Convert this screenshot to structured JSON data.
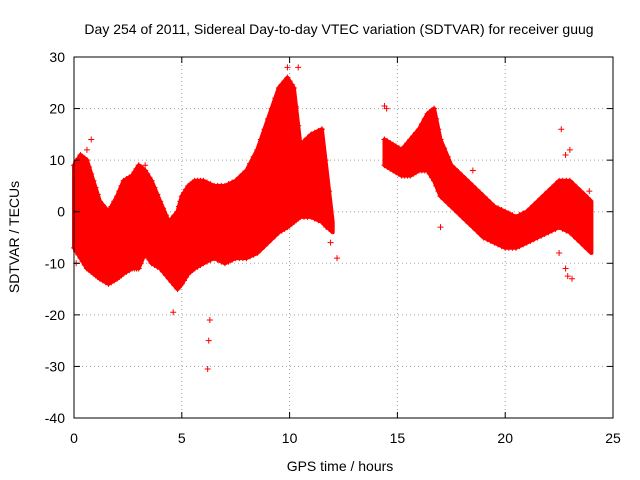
{
  "chart_data": {
    "type": "scatter",
    "title": "Day 254 of 2011, Sidereal Day-to-day VTEC variation (SDTVAR) for receiver guug",
    "xlabel": "GPS time / hours",
    "ylabel": "SDTVAR / TECUs",
    "xlim": [
      0,
      25
    ],
    "ylim": [
      -40,
      30
    ],
    "xticks": [
      0,
      5,
      10,
      15,
      20,
      25
    ],
    "yticks": [
      -40,
      -30,
      -20,
      -10,
      0,
      10,
      20,
      30
    ],
    "grid": true,
    "marker": "+",
    "color": "#ff0000",
    "series": [
      {
        "name": "SDTVAR",
        "band_segments": [
          {
            "x": [
              0,
              0.3,
              0.6,
              0.9,
              1.2,
              1.6,
              2.0,
              2.3,
              2.7,
              3.0,
              3.3,
              3.6,
              4.0,
              4.4,
              4.8,
              5.0,
              5.3,
              5.6,
              6.0,
              6.5,
              7.0,
              7.5,
              8.0,
              8.5,
              9.0,
              9.5,
              9.9,
              10.2,
              10.5,
              11.0,
              11.5,
              12.0
            ],
            "upper": [
              9,
              11,
              10,
              6,
              2,
              0,
              3,
              6,
              7,
              9,
              8,
              6,
              2,
              -2,
              0,
              3,
              5,
              6,
              6,
              5,
              5,
              6,
              8,
              12,
              18,
              24,
              26,
              24,
              13,
              15,
              16,
              -2
            ],
            "lower": [
              -7,
              -9,
              -11,
              -12,
              -13,
              -14,
              -13,
              -12,
              -11,
              -11,
              -8,
              -10,
              -11,
              -13,
              -15,
              -14,
              -12,
              -11,
              -10,
              -9,
              -10,
              -9,
              -9,
              -8,
              -6,
              -4,
              -3,
              -2,
              -1,
              -1,
              -2,
              -4
            ]
          },
          {
            "x": [
              14.4,
              14.8,
              15.2,
              15.6,
              16.0,
              16.4,
              16.7,
              17.0,
              17.5,
              18.0,
              18.5,
              19.0,
              19.5,
              20.0,
              20.5,
              21.0,
              21.5,
              22.0,
              22.5,
              23.0,
              23.5,
              24.0
            ],
            "upper": [
              14,
              13,
              12,
              14,
              16,
              19,
              20,
              14,
              9,
              7,
              5,
              3,
              1,
              0,
              -1,
              0,
              2,
              4,
              6,
              6,
              4,
              2
            ],
            "lower": [
              9,
              8,
              7,
              7,
              8,
              8,
              6,
              3,
              1,
              -1,
              -3,
              -5,
              -6,
              -7,
              -7,
              -6,
              -5,
              -4,
              -3,
              -4,
              -6,
              -8
            ]
          }
        ],
        "outliers": [
          [
            0.6,
            12
          ],
          [
            0.8,
            14
          ],
          [
            0.1,
            -10
          ],
          [
            4.6,
            -19.5
          ],
          [
            6.2,
            -30.5
          ],
          [
            6.25,
            -25
          ],
          [
            6.3,
            -21
          ],
          [
            9.9,
            28
          ],
          [
            10.4,
            28
          ],
          [
            10.9,
            8
          ],
          [
            11.7,
            -3
          ],
          [
            11.9,
            -6
          ],
          [
            12.2,
            -9
          ],
          [
            14.4,
            20.5
          ],
          [
            14.5,
            20
          ],
          [
            17.0,
            -3
          ],
          [
            18.5,
            8
          ],
          [
            22.6,
            16
          ],
          [
            22.8,
            11
          ],
          [
            23.0,
            12
          ],
          [
            22.8,
            -11
          ],
          [
            22.9,
            -12.5
          ],
          [
            23.1,
            -13
          ],
          [
            22.5,
            -8
          ],
          [
            23.9,
            4
          ],
          [
            3.3,
            9
          ],
          [
            8.0,
            5
          ]
        ]
      }
    ]
  }
}
